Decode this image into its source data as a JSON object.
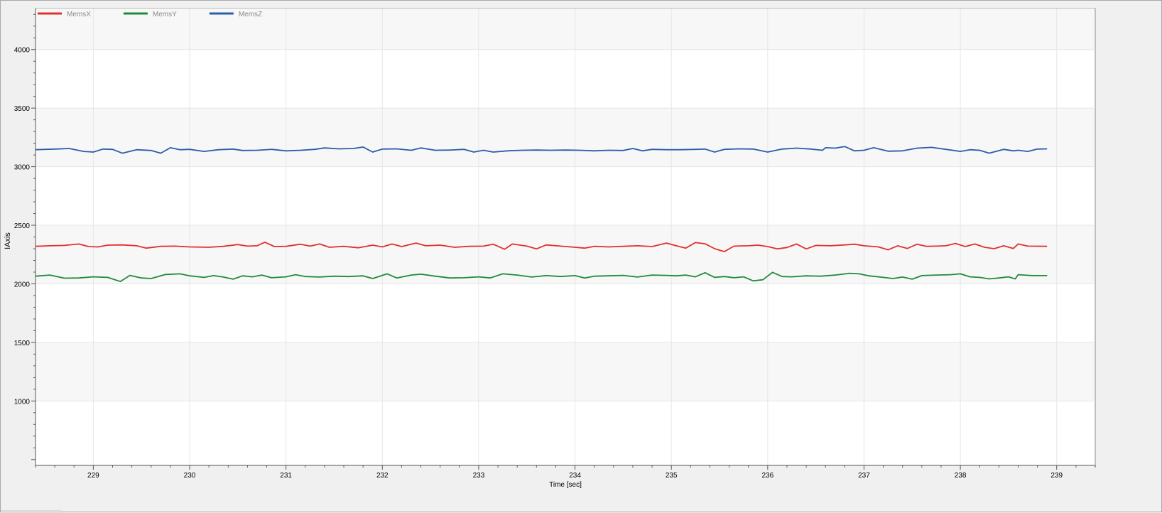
{
  "chart_data": {
    "type": "line",
    "title": "",
    "xlabel": "Time [sec]",
    "ylabel": "IAxis",
    "xlim": [
      228.4,
      239.4
    ],
    "ylim": [
      450,
      4350
    ],
    "x_ticks": [
      229,
      230,
      231,
      232,
      233,
      234,
      235,
      236,
      237,
      238,
      239
    ],
    "y_ticks": [
      1000,
      1500,
      2000,
      2500,
      3000,
      3500,
      4000
    ],
    "grid": true,
    "legend_position": "top-left",
    "series": [
      {
        "name": "MemsX",
        "color": "#e03030",
        "points": [
          [
            228.4,
            2320
          ],
          [
            228.55,
            2325
          ],
          [
            228.7,
            2328
          ],
          [
            228.85,
            2340
          ],
          [
            228.95,
            2318
          ],
          [
            229.05,
            2315
          ],
          [
            229.15,
            2330
          ],
          [
            229.3,
            2332
          ],
          [
            229.45,
            2325
          ],
          [
            229.55,
            2305
          ],
          [
            229.7,
            2320
          ],
          [
            229.85,
            2322
          ],
          [
            230.0,
            2315
          ],
          [
            230.2,
            2312
          ],
          [
            230.35,
            2320
          ],
          [
            230.5,
            2335
          ],
          [
            230.6,
            2322
          ],
          [
            230.7,
            2325
          ],
          [
            230.78,
            2355
          ],
          [
            230.88,
            2318
          ],
          [
            231.0,
            2320
          ],
          [
            231.15,
            2338
          ],
          [
            231.25,
            2322
          ],
          [
            231.35,
            2340
          ],
          [
            231.45,
            2312
          ],
          [
            231.6,
            2320
          ],
          [
            231.75,
            2308
          ],
          [
            231.9,
            2330
          ],
          [
            232.0,
            2315
          ],
          [
            232.1,
            2340
          ],
          [
            232.2,
            2318
          ],
          [
            232.35,
            2348
          ],
          [
            232.45,
            2325
          ],
          [
            232.6,
            2330
          ],
          [
            232.75,
            2312
          ],
          [
            232.9,
            2320
          ],
          [
            233.05,
            2322
          ],
          [
            233.15,
            2338
          ],
          [
            233.27,
            2295
          ],
          [
            233.35,
            2340
          ],
          [
            233.5,
            2322
          ],
          [
            233.6,
            2298
          ],
          [
            233.7,
            2332
          ],
          [
            233.85,
            2322
          ],
          [
            234.0,
            2312
          ],
          [
            234.1,
            2305
          ],
          [
            234.2,
            2320
          ],
          [
            234.35,
            2315
          ],
          [
            234.5,
            2320
          ],
          [
            234.65,
            2325
          ],
          [
            234.8,
            2318
          ],
          [
            234.95,
            2348
          ],
          [
            235.05,
            2325
          ],
          [
            235.15,
            2305
          ],
          [
            235.25,
            2352
          ],
          [
            235.35,
            2342
          ],
          [
            235.45,
            2300
          ],
          [
            235.55,
            2275
          ],
          [
            235.65,
            2322
          ],
          [
            235.8,
            2325
          ],
          [
            235.9,
            2330
          ],
          [
            236.0,
            2318
          ],
          [
            236.1,
            2298
          ],
          [
            236.2,
            2310
          ],
          [
            236.3,
            2340
          ],
          [
            236.4,
            2298
          ],
          [
            236.5,
            2328
          ],
          [
            236.65,
            2325
          ],
          [
            236.8,
            2332
          ],
          [
            236.9,
            2338
          ],
          [
            237.0,
            2325
          ],
          [
            237.15,
            2315
          ],
          [
            237.25,
            2290
          ],
          [
            237.35,
            2325
          ],
          [
            237.45,
            2302
          ],
          [
            237.55,
            2338
          ],
          [
            237.65,
            2320
          ],
          [
            237.75,
            2322
          ],
          [
            237.85,
            2325
          ],
          [
            237.95,
            2345
          ],
          [
            238.05,
            2318
          ],
          [
            238.15,
            2340
          ],
          [
            238.25,
            2312
          ],
          [
            238.35,
            2300
          ],
          [
            238.45,
            2325
          ],
          [
            238.55,
            2302
          ],
          [
            238.6,
            2340
          ],
          [
            238.7,
            2322
          ],
          [
            238.9,
            2320
          ]
        ]
      },
      {
        "name": "MemsY",
        "color": "#1f8a3c",
        "points": [
          [
            228.4,
            2065
          ],
          [
            228.55,
            2075
          ],
          [
            228.7,
            2048
          ],
          [
            228.85,
            2050
          ],
          [
            229.0,
            2060
          ],
          [
            229.15,
            2055
          ],
          [
            229.28,
            2020
          ],
          [
            229.38,
            2072
          ],
          [
            229.5,
            2050
          ],
          [
            229.6,
            2045
          ],
          [
            229.75,
            2080
          ],
          [
            229.9,
            2085
          ],
          [
            230.0,
            2068
          ],
          [
            230.15,
            2055
          ],
          [
            230.25,
            2070
          ],
          [
            230.35,
            2058
          ],
          [
            230.45,
            2040
          ],
          [
            230.55,
            2068
          ],
          [
            230.65,
            2060
          ],
          [
            230.75,
            2075
          ],
          [
            230.85,
            2052
          ],
          [
            231.0,
            2060
          ],
          [
            231.1,
            2078
          ],
          [
            231.2,
            2062
          ],
          [
            231.35,
            2058
          ],
          [
            231.5,
            2065
          ],
          [
            231.65,
            2062
          ],
          [
            231.8,
            2068
          ],
          [
            231.9,
            2045
          ],
          [
            232.05,
            2085
          ],
          [
            232.15,
            2050
          ],
          [
            232.3,
            2075
          ],
          [
            232.4,
            2082
          ],
          [
            232.55,
            2065
          ],
          [
            232.7,
            2050
          ],
          [
            232.85,
            2052
          ],
          [
            233.0,
            2060
          ],
          [
            233.12,
            2050
          ],
          [
            233.25,
            2085
          ],
          [
            233.4,
            2075
          ],
          [
            233.55,
            2058
          ],
          [
            233.7,
            2070
          ],
          [
            233.85,
            2062
          ],
          [
            234.0,
            2070
          ],
          [
            234.1,
            2050
          ],
          [
            234.2,
            2065
          ],
          [
            234.35,
            2068
          ],
          [
            234.5,
            2072
          ],
          [
            234.65,
            2058
          ],
          [
            234.8,
            2075
          ],
          [
            234.95,
            2072
          ],
          [
            235.05,
            2068
          ],
          [
            235.15,
            2075
          ],
          [
            235.25,
            2060
          ],
          [
            235.35,
            2095
          ],
          [
            235.45,
            2055
          ],
          [
            235.55,
            2062
          ],
          [
            235.65,
            2052
          ],
          [
            235.75,
            2060
          ],
          [
            235.85,
            2025
          ],
          [
            235.95,
            2035
          ],
          [
            236.05,
            2098
          ],
          [
            236.15,
            2062
          ],
          [
            236.25,
            2060
          ],
          [
            236.4,
            2068
          ],
          [
            236.55,
            2065
          ],
          [
            236.7,
            2075
          ],
          [
            236.85,
            2090
          ],
          [
            236.95,
            2085
          ],
          [
            237.05,
            2068
          ],
          [
            237.2,
            2055
          ],
          [
            237.3,
            2045
          ],
          [
            237.4,
            2058
          ],
          [
            237.5,
            2040
          ],
          [
            237.6,
            2070
          ],
          [
            237.75,
            2075
          ],
          [
            237.9,
            2078
          ],
          [
            238.0,
            2085
          ],
          [
            238.1,
            2060
          ],
          [
            238.2,
            2055
          ],
          [
            238.3,
            2042
          ],
          [
            238.4,
            2050
          ],
          [
            238.5,
            2060
          ],
          [
            238.57,
            2042
          ],
          [
            238.6,
            2078
          ],
          [
            238.75,
            2070
          ],
          [
            238.9,
            2070
          ]
        ]
      },
      {
        "name": "MemsZ",
        "color": "#2b5ca8",
        "points": [
          [
            228.4,
            3145
          ],
          [
            228.6,
            3150
          ],
          [
            228.75,
            3155
          ],
          [
            228.9,
            3130
          ],
          [
            229.0,
            3125
          ],
          [
            229.1,
            3150
          ],
          [
            229.2,
            3148
          ],
          [
            229.3,
            3115
          ],
          [
            229.45,
            3145
          ],
          [
            229.6,
            3138
          ],
          [
            229.7,
            3115
          ],
          [
            229.8,
            3162
          ],
          [
            229.9,
            3145
          ],
          [
            230.0,
            3148
          ],
          [
            230.15,
            3130
          ],
          [
            230.3,
            3145
          ],
          [
            230.45,
            3150
          ],
          [
            230.55,
            3138
          ],
          [
            230.7,
            3140
          ],
          [
            230.85,
            3148
          ],
          [
            231.0,
            3135
          ],
          [
            231.15,
            3140
          ],
          [
            231.3,
            3148
          ],
          [
            231.4,
            3160
          ],
          [
            231.55,
            3152
          ],
          [
            231.7,
            3155
          ],
          [
            231.8,
            3168
          ],
          [
            231.9,
            3125
          ],
          [
            232.0,
            3150
          ],
          [
            232.15,
            3152
          ],
          [
            232.3,
            3140
          ],
          [
            232.4,
            3160
          ],
          [
            232.55,
            3140
          ],
          [
            232.7,
            3142
          ],
          [
            232.85,
            3148
          ],
          [
            232.95,
            3125
          ],
          [
            233.05,
            3140
          ],
          [
            233.15,
            3125
          ],
          [
            233.3,
            3135
          ],
          [
            233.45,
            3140
          ],
          [
            233.6,
            3142
          ],
          [
            233.75,
            3140
          ],
          [
            233.9,
            3142
          ],
          [
            234.05,
            3140
          ],
          [
            234.2,
            3135
          ],
          [
            234.35,
            3140
          ],
          [
            234.5,
            3138
          ],
          [
            234.6,
            3155
          ],
          [
            234.7,
            3135
          ],
          [
            234.8,
            3148
          ],
          [
            234.95,
            3145
          ],
          [
            235.1,
            3145
          ],
          [
            235.25,
            3148
          ],
          [
            235.35,
            3150
          ],
          [
            235.45,
            3125
          ],
          [
            235.55,
            3148
          ],
          [
            235.7,
            3152
          ],
          [
            235.85,
            3150
          ],
          [
            236.0,
            3125
          ],
          [
            236.15,
            3150
          ],
          [
            236.3,
            3158
          ],
          [
            236.45,
            3150
          ],
          [
            236.57,
            3140
          ],
          [
            236.6,
            3162
          ],
          [
            236.7,
            3158
          ],
          [
            236.8,
            3172
          ],
          [
            236.9,
            3135
          ],
          [
            237.0,
            3140
          ],
          [
            237.1,
            3162
          ],
          [
            237.25,
            3132
          ],
          [
            237.4,
            3135
          ],
          [
            237.55,
            3158
          ],
          [
            237.7,
            3165
          ],
          [
            237.85,
            3148
          ],
          [
            238.0,
            3130
          ],
          [
            238.1,
            3145
          ],
          [
            238.2,
            3140
          ],
          [
            238.3,
            3115
          ],
          [
            238.45,
            3148
          ],
          [
            238.55,
            3135
          ],
          [
            238.6,
            3140
          ],
          [
            238.7,
            3130
          ],
          [
            238.8,
            3150
          ],
          [
            238.9,
            3152
          ]
        ]
      }
    ]
  }
}
